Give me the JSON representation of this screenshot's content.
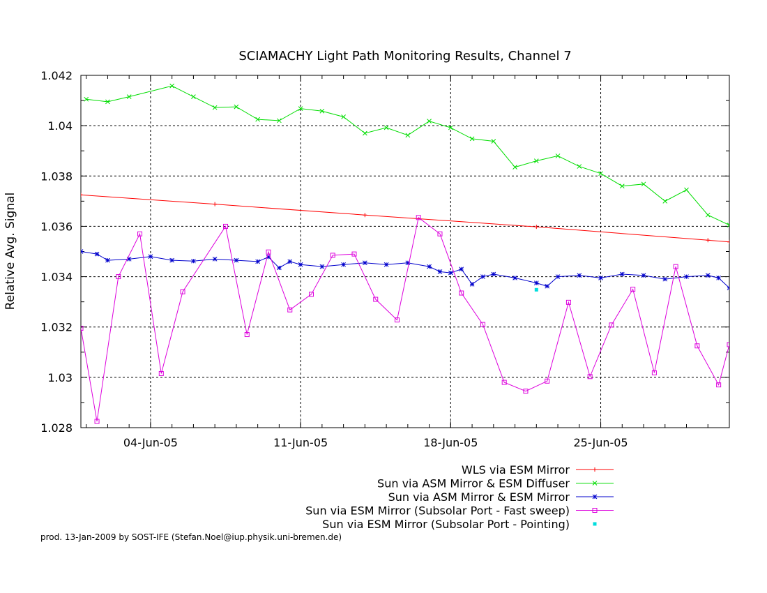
{
  "chart_data": {
    "type": "line",
    "title": "SCIAMACHY Light Path Monitoring Results, Channel 7",
    "xlabel": "",
    "ylabel": "Relative Avg. Signal",
    "xlim": [
      "2005-05-31T18:00",
      "2005-07-01T00:00"
    ],
    "ylim": [
      1.028,
      1.042
    ],
    "yticks": [
      "1.028",
      "1.03",
      "1.032",
      "1.034",
      "1.036",
      "1.038",
      "1.04",
      "1.042"
    ],
    "xticks": [
      {
        "date": "2005-06-04",
        "label": "04-Jun-05"
      },
      {
        "date": "2005-06-11",
        "label": "11-Jun-05"
      },
      {
        "date": "2005-06-18",
        "label": "18-Jun-05"
      },
      {
        "date": "2005-06-25",
        "label": "25-Jun-05"
      }
    ],
    "grid": true,
    "legend_position": "bottom-right",
    "series": [
      {
        "name": "WLS via ESM Mirror",
        "color": "#ff0000",
        "marker": "plus",
        "points": [
          [
            "2005-05-31T18:00",
            1.03725
          ],
          [
            "2005-06-07T00:00",
            1.03688
          ],
          [
            "2005-06-14T00:00",
            1.03645
          ],
          [
            "2005-06-22T00:00",
            1.03598
          ],
          [
            "2005-06-30T00:00",
            1.03545
          ],
          [
            "2005-07-01T00:00",
            1.03538
          ]
        ]
      },
      {
        "name": "Sun via ASM Mirror & ESM Diffuser",
        "color": "#00dd00",
        "marker": "cross",
        "points": [
          [
            "2005-06-01T00:00",
            1.04105
          ],
          [
            "2005-06-02T00:00",
            1.04095
          ],
          [
            "2005-06-03T00:00",
            1.04115
          ],
          [
            "2005-06-05T00:00",
            1.04158
          ],
          [
            "2005-06-06T00:00",
            1.04115
          ],
          [
            "2005-06-07T00:00",
            1.04072
          ],
          [
            "2005-06-08T00:00",
            1.04075
          ],
          [
            "2005-06-09T00:00",
            1.04025
          ],
          [
            "2005-06-10T00:00",
            1.0402
          ],
          [
            "2005-06-11T00:00",
            1.04068
          ],
          [
            "2005-06-12T00:00",
            1.04058
          ],
          [
            "2005-06-13T00:00",
            1.04035
          ],
          [
            "2005-06-14T00:00",
            1.0397
          ],
          [
            "2005-06-15T00:00",
            1.03992
          ],
          [
            "2005-06-16T00:00",
            1.03962
          ],
          [
            "2005-06-17T00:00",
            1.04018
          ],
          [
            "2005-06-18T00:00",
            1.03992
          ],
          [
            "2005-06-19T00:00",
            1.03948
          ],
          [
            "2005-06-20T00:00",
            1.03938
          ],
          [
            "2005-06-21T00:00",
            1.03835
          ],
          [
            "2005-06-22T00:00",
            1.0386
          ],
          [
            "2005-06-23T00:00",
            1.0388
          ],
          [
            "2005-06-24T00:00",
            1.03838
          ],
          [
            "2005-06-25T00:00",
            1.0381
          ],
          [
            "2005-06-26T00:00",
            1.0376
          ],
          [
            "2005-06-27T00:00",
            1.03768
          ],
          [
            "2005-06-28T00:00",
            1.037
          ],
          [
            "2005-06-29T00:00",
            1.03745
          ],
          [
            "2005-06-30T00:00",
            1.03645
          ],
          [
            "2005-07-01T00:00",
            1.03605
          ]
        ]
      },
      {
        "name": "Sun via ASM Mirror & ESM Mirror",
        "color": "#0000cc",
        "marker": "star",
        "points": [
          [
            "2005-05-31T18:00",
            1.035
          ],
          [
            "2005-06-01T12:00",
            1.0349
          ],
          [
            "2005-06-02T00:00",
            1.03465
          ],
          [
            "2005-06-03T00:00",
            1.0347
          ],
          [
            "2005-06-04T00:00",
            1.0348
          ],
          [
            "2005-06-05T00:00",
            1.03465
          ],
          [
            "2005-06-06T00:00",
            1.03462
          ],
          [
            "2005-06-07T00:00",
            1.0347
          ],
          [
            "2005-06-08T00:00",
            1.03465
          ],
          [
            "2005-06-09T00:00",
            1.0346
          ],
          [
            "2005-06-09T12:00",
            1.03478
          ],
          [
            "2005-06-10T00:00",
            1.03435
          ],
          [
            "2005-06-10T12:00",
            1.0346
          ],
          [
            "2005-06-11T00:00",
            1.03448
          ],
          [
            "2005-06-12T00:00",
            1.0344
          ],
          [
            "2005-06-13T00:00",
            1.03448
          ],
          [
            "2005-06-14T00:00",
            1.03455
          ],
          [
            "2005-06-15T00:00",
            1.03448
          ],
          [
            "2005-06-16T00:00",
            1.03455
          ],
          [
            "2005-06-17T00:00",
            1.0344
          ],
          [
            "2005-06-17T12:00",
            1.0342
          ],
          [
            "2005-06-18T00:00",
            1.03415
          ],
          [
            "2005-06-18T12:00",
            1.0343
          ],
          [
            "2005-06-19T00:00",
            1.0337
          ],
          [
            "2005-06-19T12:00",
            1.034
          ],
          [
            "2005-06-20T00:00",
            1.0341
          ],
          [
            "2005-06-21T00:00",
            1.03395
          ],
          [
            "2005-06-22T00:00",
            1.03375
          ],
          [
            "2005-06-22T12:00",
            1.03362
          ],
          [
            "2005-06-23T00:00",
            1.034
          ],
          [
            "2005-06-24T00:00",
            1.03405
          ],
          [
            "2005-06-25T00:00",
            1.03395
          ],
          [
            "2005-06-26T00:00",
            1.0341
          ],
          [
            "2005-06-27T00:00",
            1.03405
          ],
          [
            "2005-06-28T00:00",
            1.0339
          ],
          [
            "2005-06-29T00:00",
            1.034
          ],
          [
            "2005-06-30T00:00",
            1.03405
          ],
          [
            "2005-06-30T12:00",
            1.03395
          ],
          [
            "2005-07-01T00:00",
            1.03355
          ]
        ]
      },
      {
        "name": "Sun via ESM Mirror (Subsolar Port - Fast sweep)",
        "color": "#dd00dd",
        "marker": "square",
        "points": [
          [
            "2005-05-31T18:00",
            1.03195
          ],
          [
            "2005-06-01T12:00",
            1.02825
          ],
          [
            "2005-06-02T12:00",
            1.034
          ],
          [
            "2005-06-03T12:00",
            1.0357
          ],
          [
            "2005-06-04T12:00",
            1.03015
          ],
          [
            "2005-06-05T12:00",
            1.0334
          ],
          [
            "2005-06-07T12:00",
            1.036
          ],
          [
            "2005-06-08T12:00",
            1.0317
          ],
          [
            "2005-06-09T12:00",
            1.03498
          ],
          [
            "2005-06-10T12:00",
            1.03268
          ],
          [
            "2005-06-11T12:00",
            1.0333
          ],
          [
            "2005-06-12T12:00",
            1.03485
          ],
          [
            "2005-06-13T12:00",
            1.0349
          ],
          [
            "2005-06-14T12:00",
            1.0331
          ],
          [
            "2005-06-15T12:00",
            1.03228
          ],
          [
            "2005-06-16T12:00",
            1.03635
          ],
          [
            "2005-06-17T12:00",
            1.0357
          ],
          [
            "2005-06-18T12:00",
            1.03335
          ],
          [
            "2005-06-19T12:00",
            1.0321
          ],
          [
            "2005-06-20T12:00",
            1.0298
          ],
          [
            "2005-06-21T12:00",
            1.02945
          ],
          [
            "2005-06-22T12:00",
            1.02985
          ],
          [
            "2005-06-23T12:00",
            1.03298
          ],
          [
            "2005-06-24T12:00",
            1.03003
          ],
          [
            "2005-06-25T12:00",
            1.03208
          ],
          [
            "2005-06-26T12:00",
            1.0335
          ],
          [
            "2005-06-27T12:00",
            1.03018
          ],
          [
            "2005-06-28T12:00",
            1.0344
          ],
          [
            "2005-06-29T12:00",
            1.03125
          ],
          [
            "2005-06-30T12:00",
            1.0297
          ],
          [
            "2005-07-01T00:00",
            1.0313
          ]
        ]
      },
      {
        "name": "Sun via ESM Mirror (Subsolar Port - Pointing)",
        "color": "#00dddd",
        "marker": "dot",
        "points": [
          [
            "2005-06-22T00:00",
            1.03348
          ]
        ]
      }
    ]
  },
  "footer": "prod. 13-Jan-2009 by SOST-IFE (Stefan.Noel@iup.physik.uni-bremen.de)"
}
